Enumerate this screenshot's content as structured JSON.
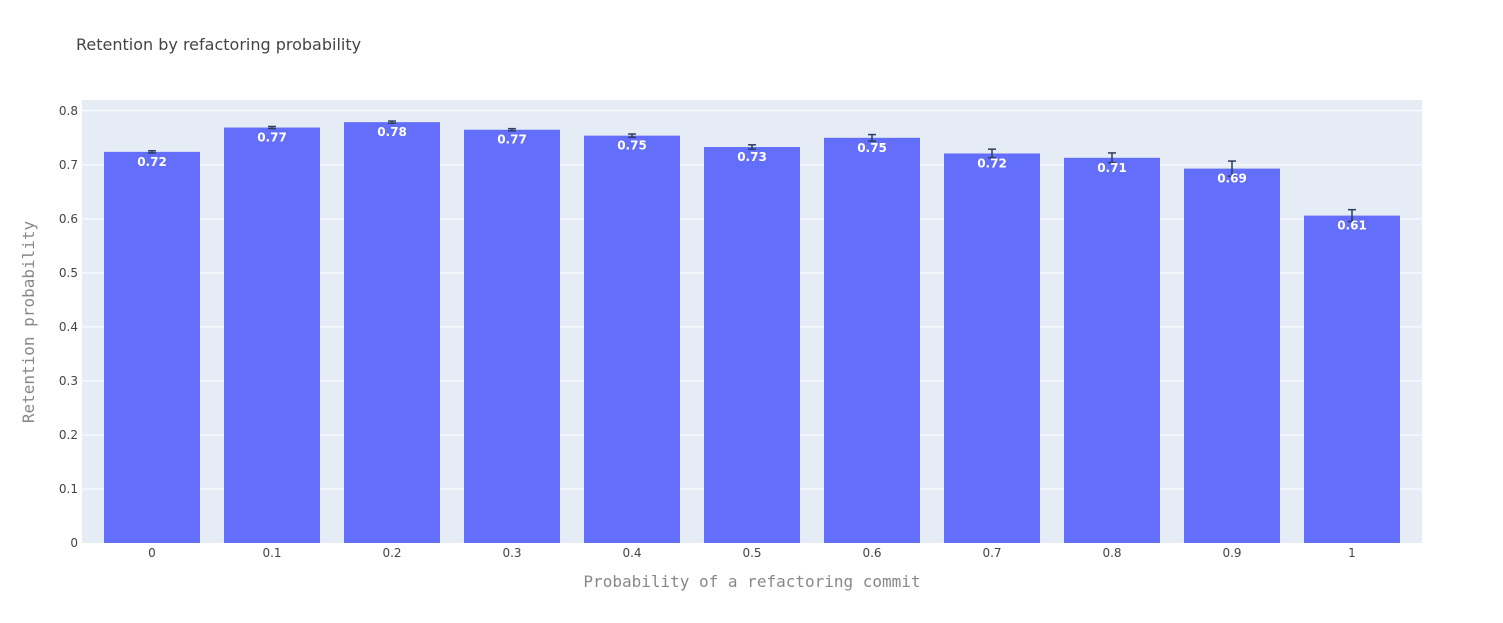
{
  "chart_data": {
    "type": "bar",
    "title": "Retention by refactoring probability",
    "xlabel": "Probability of a refactoring commit",
    "ylabel": "Retention probability",
    "categories": [
      "0",
      "0.1",
      "0.2",
      "0.3",
      "0.4",
      "0.5",
      "0.6",
      "0.7",
      "0.8",
      "0.9",
      "1"
    ],
    "values": [
      0.724,
      0.769,
      0.779,
      0.765,
      0.754,
      0.733,
      0.75,
      0.721,
      0.713,
      0.693,
      0.606
    ],
    "data_labels": [
      "0.72",
      "0.77",
      "0.78",
      "0.77",
      "0.75",
      "0.73",
      "0.75",
      "0.72",
      "0.71",
      "0.69",
      "0.61"
    ],
    "error": [
      0.002,
      0.002,
      0.002,
      0.002,
      0.003,
      0.004,
      0.006,
      0.008,
      0.009,
      0.014,
      0.011
    ],
    "ylim": [
      0,
      0.82
    ],
    "yticks": [
      0,
      0.1,
      0.2,
      0.3,
      0.4,
      0.5,
      0.6,
      0.7,
      0.8
    ],
    "ytick_labels": [
      "0",
      "0.1",
      "0.2",
      "0.3",
      "0.4",
      "0.5",
      "0.6",
      "0.7",
      "0.8"
    ],
    "grid": true,
    "colors": {
      "bar": "#636efa",
      "plot_bg": "#e5ecf6",
      "error": "#2a3f5f"
    }
  }
}
